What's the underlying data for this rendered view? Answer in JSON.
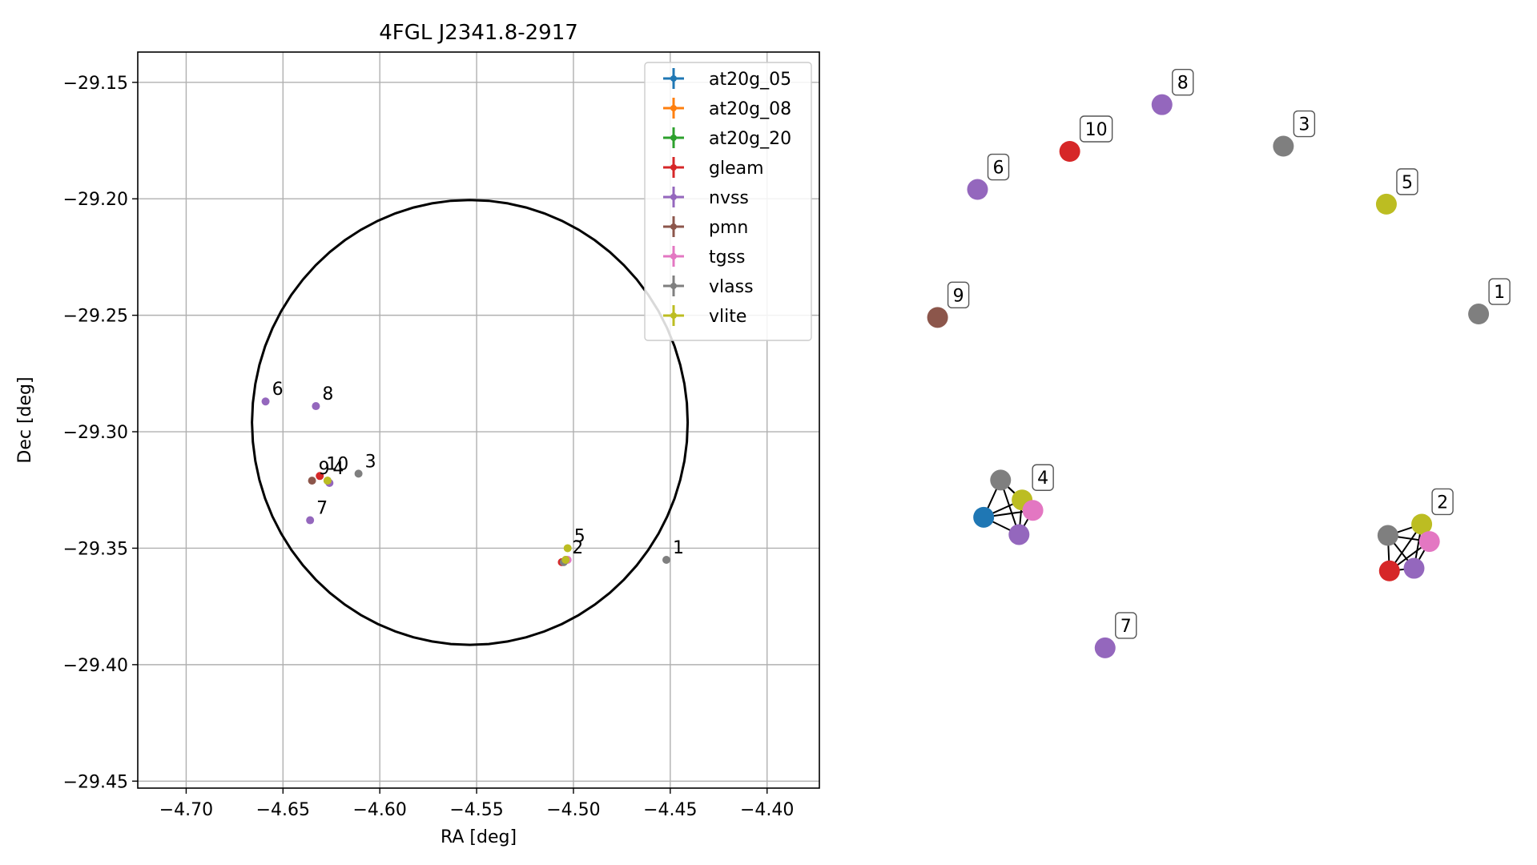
{
  "chart_data": [
    {
      "type": "scatter",
      "title": "4FGL J2341.8-2917",
      "xlabel": "RA [deg]",
      "ylabel": "Dec [deg]",
      "xlim": [
        -4.725,
        -4.373
      ],
      "ylim": [
        -29.453,
        -29.137
      ],
      "xticks": [
        -4.7,
        -4.65,
        -4.6,
        -4.55,
        -4.5,
        -4.45,
        -4.4
      ],
      "xtick_labels": [
        "−4.70",
        "−4.65",
        "−4.60",
        "−4.55",
        "−4.50",
        "−4.45",
        "−4.40"
      ],
      "yticks": [
        -29.15,
        -29.2,
        -29.25,
        -29.3,
        -29.35,
        -29.4,
        -29.45
      ],
      "ytick_labels": [
        "−29.15",
        "−29.20",
        "−29.25",
        "−29.30",
        "−29.35",
        "−29.40",
        "−29.45"
      ],
      "grid": true,
      "legend_position": "top-right",
      "ellipse": {
        "center": [
          -4.5535,
          -29.296
        ],
        "semi_x": 0.1125,
        "semi_y": 0.0955,
        "color": "#000000"
      },
      "series": [
        {
          "name": "at20g_05",
          "color": "#1f77b4",
          "points": []
        },
        {
          "name": "at20g_08",
          "color": "#ff7f0e",
          "points": []
        },
        {
          "name": "at20g_20",
          "color": "#2ca02c",
          "points": []
        },
        {
          "name": "gleam",
          "color": "#d62728",
          "points": [
            {
              "x": -4.631,
              "y": -29.319
            },
            {
              "x": -4.506,
              "y": -29.356
            }
          ]
        },
        {
          "name": "nvss",
          "color": "#9467bd",
          "points": [
            {
              "x": -4.659,
              "y": -29.287
            },
            {
              "x": -4.633,
              "y": -29.289
            },
            {
              "x": -4.636,
              "y": -29.338
            },
            {
              "x": -4.626,
              "y": -29.322
            },
            {
              "x": -4.504,
              "y": -29.355
            }
          ]
        },
        {
          "name": "pmn",
          "color": "#8c564b",
          "points": [
            {
              "x": -4.635,
              "y": -29.321
            }
          ]
        },
        {
          "name": "tgss",
          "color": "#e377c2",
          "points": [
            {
              "x": -4.503,
              "y": -29.355
            }
          ]
        },
        {
          "name": "vlass",
          "color": "#7f7f7f",
          "points": [
            {
              "x": -4.611,
              "y": -29.318
            },
            {
              "x": -4.452,
              "y": -29.355
            },
            {
              "x": -4.627,
              "y": -29.321
            },
            {
              "x": -4.505,
              "y": -29.356
            }
          ]
        },
        {
          "name": "vlite",
          "color": "#bcbd22",
          "points": [
            {
              "x": -4.627,
              "y": -29.321
            },
            {
              "x": -4.503,
              "y": -29.35
            },
            {
              "x": -4.504,
              "y": -29.355
            }
          ]
        }
      ],
      "labels": [
        {
          "text": "1",
          "x": -4.452,
          "y": -29.355
        },
        {
          "text": "2",
          "x": -4.504,
          "y": -29.355
        },
        {
          "text": "3",
          "x": -4.611,
          "y": -29.318
        },
        {
          "text": "4",
          "x": -4.626,
          "y": -29.321
        },
        {
          "text": "5",
          "x": -4.503,
          "y": -29.35
        },
        {
          "text": "6",
          "x": -4.659,
          "y": -29.287
        },
        {
          "text": "7",
          "x": -4.636,
          "y": -29.338
        },
        {
          "text": "8",
          "x": -4.633,
          "y": -29.289
        },
        {
          "text": "9",
          "x": -4.635,
          "y": -29.321
        },
        {
          "text": "10",
          "x": -4.631,
          "y": -29.319
        }
      ]
    },
    {
      "type": "network",
      "nodes": [
        {
          "id": "1",
          "x": 0.962,
          "y": 0.363,
          "color": "#7f7f7f",
          "label": "1"
        },
        {
          "id": "2",
          "x": 0.925,
          "y": 0.606,
          "color": "#bcbd22",
          "label": "2"
        },
        {
          "id": "2b",
          "x": 0.903,
          "y": 0.619,
          "color": "#7f7f7f"
        },
        {
          "id": "2c",
          "x": 0.93,
          "y": 0.626,
          "color": "#e377c2"
        },
        {
          "id": "2d",
          "x": 0.904,
          "y": 0.66,
          "color": "#d62728"
        },
        {
          "id": "2e",
          "x": 0.92,
          "y": 0.657,
          "color": "#9467bd"
        },
        {
          "id": "3",
          "x": 0.835,
          "y": 0.169,
          "color": "#7f7f7f",
          "label": "3"
        },
        {
          "id": "4",
          "x": 0.665,
          "y": 0.578,
          "color": "#bcbd22",
          "label": "4"
        },
        {
          "id": "4b",
          "x": 0.651,
          "y": 0.555,
          "color": "#7f7f7f"
        },
        {
          "id": "4c",
          "x": 0.64,
          "y": 0.598,
          "color": "#1f77b4"
        },
        {
          "id": "4d",
          "x": 0.672,
          "y": 0.59,
          "color": "#e377c2"
        },
        {
          "id": "4e",
          "x": 0.663,
          "y": 0.618,
          "color": "#9467bd"
        },
        {
          "id": "5",
          "x": 0.902,
          "y": 0.236,
          "color": "#bcbd22",
          "label": "5"
        },
        {
          "id": "6",
          "x": 0.636,
          "y": 0.219,
          "color": "#9467bd",
          "label": "6"
        },
        {
          "id": "7",
          "x": 0.719,
          "y": 0.749,
          "color": "#9467bd",
          "label": "7"
        },
        {
          "id": "8",
          "x": 0.756,
          "y": 0.121,
          "color": "#9467bd",
          "label": "8"
        },
        {
          "id": "9",
          "x": 0.61,
          "y": 0.367,
          "color": "#8c564b",
          "label": "9"
        },
        {
          "id": "10",
          "x": 0.696,
          "y": 0.175,
          "color": "#d62728",
          "label": "10"
        }
      ],
      "edges": [
        [
          "4",
          "4b"
        ],
        [
          "4",
          "4c"
        ],
        [
          "4",
          "4d"
        ],
        [
          "4",
          "4e"
        ],
        [
          "4b",
          "4c"
        ],
        [
          "4b",
          "4d"
        ],
        [
          "4b",
          "4e"
        ],
        [
          "4c",
          "4d"
        ],
        [
          "4c",
          "4e"
        ],
        [
          "4d",
          "4e"
        ],
        [
          "2",
          "2b"
        ],
        [
          "2",
          "2c"
        ],
        [
          "2",
          "2d"
        ],
        [
          "2",
          "2e"
        ],
        [
          "2b",
          "2c"
        ],
        [
          "2b",
          "2d"
        ],
        [
          "2b",
          "2e"
        ],
        [
          "2c",
          "2d"
        ],
        [
          "2c",
          "2e"
        ],
        [
          "2d",
          "2e"
        ]
      ]
    }
  ]
}
